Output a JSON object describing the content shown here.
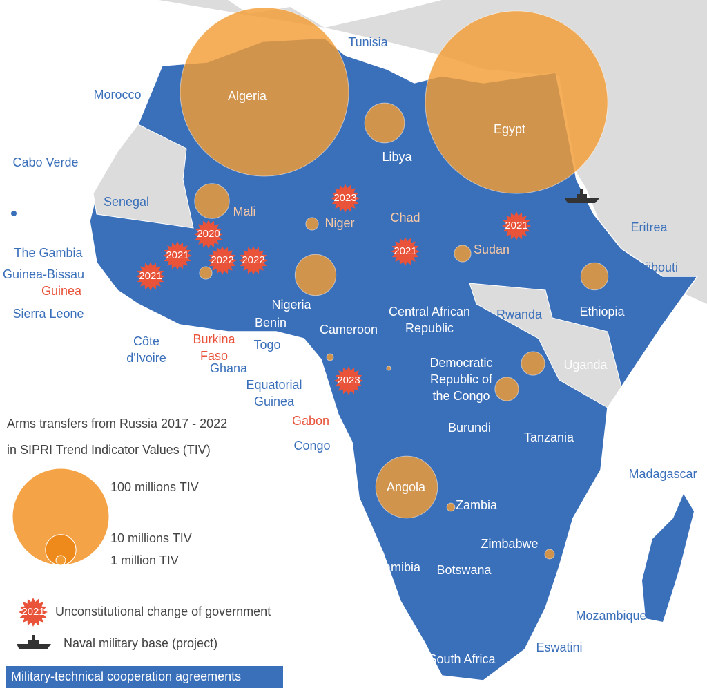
{
  "legend": {
    "title": [
      "Arms transfers from Russia 2017 - 2022",
      "in SIPRI Trend Indicator Values (TIV)"
    ],
    "sizes": [
      {
        "value": 100,
        "label": "100 millions TIV"
      },
      {
        "value": 10,
        "label": "10 millions TIV"
      },
      {
        "value": 1,
        "label": "1 million TIV"
      }
    ],
    "coup_sample": 2021,
    "coup": "Unconstitutional change of government",
    "naval": "Naval military base (project)",
    "agreements": "Military-technical cooperation agreements"
  },
  "countries": [
    {
      "name": [
        "Algeria"
      ],
      "tiv": 304
    },
    {
      "name": [
        "Egypt"
      ],
      "tiv": 356
    },
    {
      "name": [
        "Libya"
      ],
      "tiv": 17
    },
    {
      "name": [
        "Tunisia"
      ]
    },
    {
      "name": [
        "Morocco"
      ]
    },
    {
      "name": [
        "Cabo Verde"
      ]
    },
    {
      "name": [
        "Senegal"
      ]
    },
    {
      "name": [
        "Mali"
      ],
      "tiv": 13
    },
    {
      "name": [
        "Niger"
      ],
      "tiv": 1.7
    },
    {
      "name": [
        "Chad"
      ]
    },
    {
      "name": [
        "Sudan"
      ],
      "tiv": 3
    },
    {
      "name": [
        "Eritrea"
      ]
    },
    {
      "name": [
        "Djibouti"
      ]
    },
    {
      "name": [
        "Ethiopia"
      ],
      "tiv": 8
    },
    {
      "name": [
        "The Gambia"
      ]
    },
    {
      "name": [
        "Guinea-Bissau"
      ]
    },
    {
      "name": [
        "Guinea"
      ]
    },
    {
      "name": [
        "Sierra Leone"
      ]
    },
    {
      "name": [
        "Côte",
        "d'Ivoire"
      ]
    },
    {
      "name": [
        "Burkina",
        "Faso"
      ],
      "tiv": 1.7
    },
    {
      "name": [
        "Ghana"
      ]
    },
    {
      "name": [
        "Togo"
      ]
    },
    {
      "name": [
        "Benin"
      ]
    },
    {
      "name": [
        "Nigeria"
      ],
      "tiv": 18
    },
    {
      "name": [
        "Cameroon"
      ]
    },
    {
      "name": [
        "Central African",
        "Republic"
      ],
      "tiv": 0.2
    },
    {
      "name": [
        "Equatorial",
        "Guinea"
      ],
      "tiv": 0.5
    },
    {
      "name": [
        "Gabon"
      ]
    },
    {
      "name": [
        "Congo"
      ]
    },
    {
      "name": [
        "Democratic",
        "Republic of",
        "the Congo"
      ],
      "tiv": 6
    },
    {
      "name": [
        "Rwanda"
      ],
      "tiv": 6
    },
    {
      "name": [
        "Uganda"
      ]
    },
    {
      "name": [
        "Burundi"
      ]
    },
    {
      "name": [
        "Tanzania"
      ]
    },
    {
      "name": [
        "Madagascar"
      ]
    },
    {
      "name": [
        "Angola"
      ],
      "tiv": 41
    },
    {
      "name": [
        "Zambia"
      ],
      "tiv": 0.7
    },
    {
      "name": [
        "Zimbabwe"
      ]
    },
    {
      "name": [
        "Mozambique"
      ],
      "tiv": 1
    },
    {
      "name": [
        "Namibia"
      ]
    },
    {
      "name": [
        "Botswana"
      ]
    },
    {
      "name": [
        "Eswatini"
      ]
    },
    {
      "name": [
        "South Africa"
      ]
    }
  ],
  "coups": [
    2021,
    2020,
    2021,
    2022,
    2022,
    2023,
    2021,
    2021,
    2023
  ]
}
